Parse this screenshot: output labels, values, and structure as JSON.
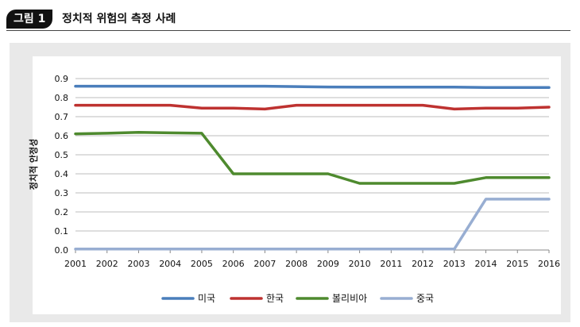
{
  "figure": {
    "badge": "그림 1",
    "title": "정치적 위험의 측정 사례"
  },
  "chart_data": {
    "type": "line",
    "title": "",
    "xlabel": "",
    "ylabel": "정치적 안정성",
    "ylim": [
      0,
      0.9
    ],
    "y_ticks": [
      "0.0",
      "0.1",
      "0.2",
      "0.3",
      "0.4",
      "0.5",
      "0.6",
      "0.7",
      "0.8",
      "0.9"
    ],
    "x": [
      "2001",
      "2002",
      "2003",
      "2004",
      "2005",
      "2006",
      "2007",
      "2008",
      "2009",
      "2010",
      "2011",
      "2012",
      "2013",
      "2014",
      "2015",
      "2016"
    ],
    "grid": true,
    "legend_position": "bottom",
    "series": [
      {
        "name": "미국",
        "color": "#4a7ebb",
        "values": [
          0.86,
          0.86,
          0.86,
          0.86,
          0.86,
          0.86,
          0.86,
          0.858,
          0.856,
          0.855,
          0.855,
          0.855,
          0.855,
          0.853,
          0.853,
          0.853
        ]
      },
      {
        "name": "한국",
        "color": "#be3230",
        "values": [
          0.76,
          0.76,
          0.76,
          0.76,
          0.745,
          0.745,
          0.74,
          0.76,
          0.76,
          0.76,
          0.76,
          0.76,
          0.74,
          0.745,
          0.745,
          0.75
        ]
      },
      {
        "name": "볼리비아",
        "color": "#4e8a2e",
        "values": [
          0.61,
          0.613,
          0.618,
          0.615,
          0.613,
          0.4,
          0.4,
          0.4,
          0.4,
          0.35,
          0.35,
          0.35,
          0.35,
          0.38,
          0.38,
          0.38
        ]
      },
      {
        "name": "중국",
        "color": "#98aed2",
        "values": [
          0.005,
          0.005,
          0.005,
          0.005,
          0.005,
          0.005,
          0.005,
          0.005,
          0.005,
          0.005,
          0.005,
          0.005,
          0.005,
          0.267,
          0.267,
          0.267
        ]
      }
    ]
  }
}
